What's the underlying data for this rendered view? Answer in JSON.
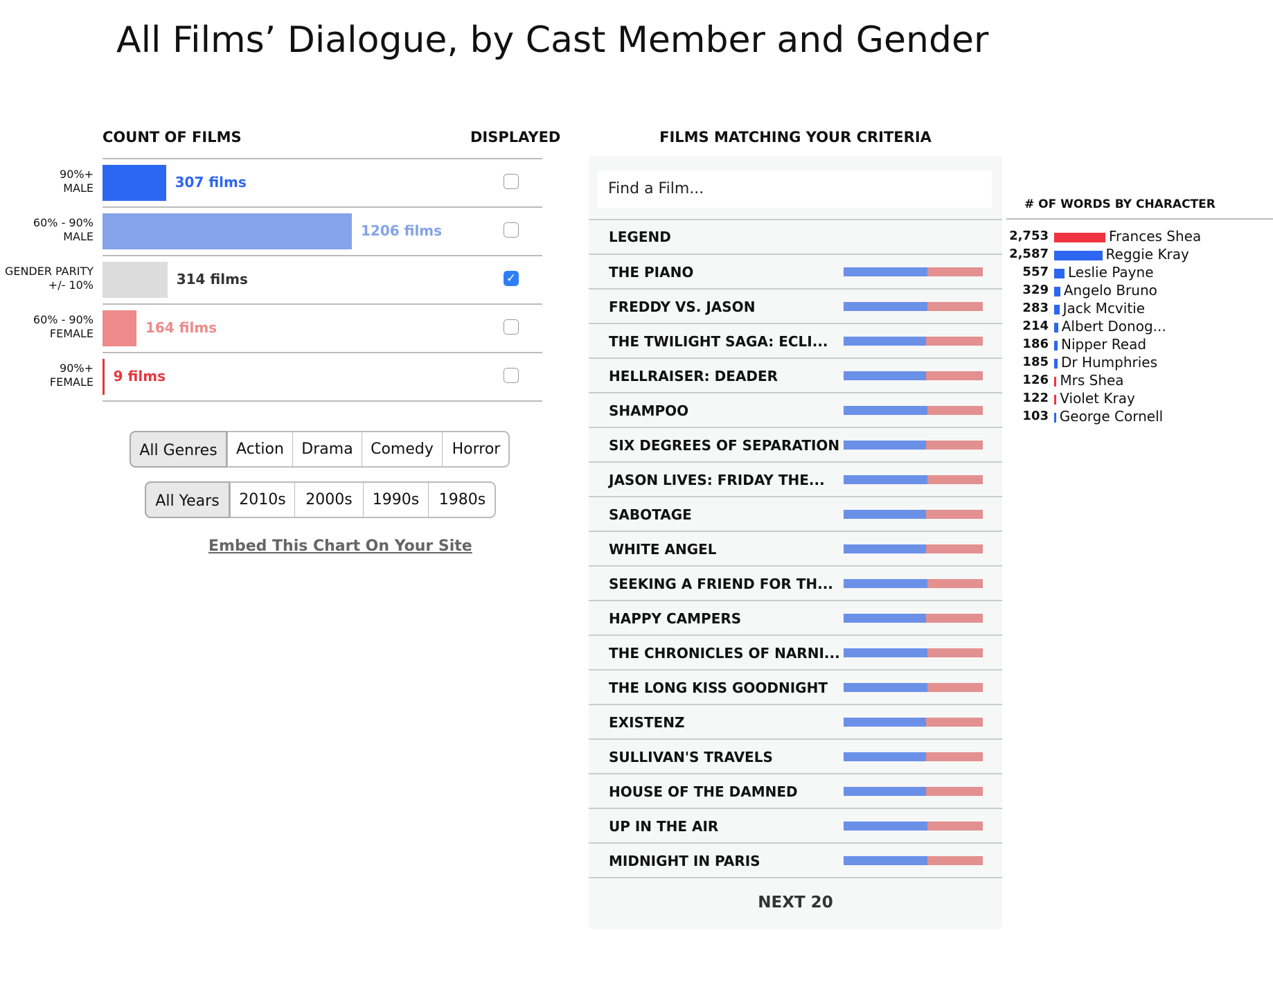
{
  "title": "All Films’ Dialogue, by Cast Member and Gender",
  "count_panel": {
    "header": "COUNT OF FILMS",
    "displayed_header": "DISPLAYED",
    "rows": [
      {
        "label": [
          "90%+",
          "MALE"
        ],
        "count": 307,
        "count_label": "307 films",
        "color": "#2d66f0",
        "text_color": "#2d66f0",
        "checked": false
      },
      {
        "label": [
          "60% - 90%",
          "MALE"
        ],
        "count": 1206,
        "count_label": "1206 films",
        "color": "#84a3e8",
        "text_color": "#84a3e8",
        "checked": false
      },
      {
        "label": [
          "GENDER PARITY",
          "+/- 10%"
        ],
        "count": 314,
        "count_label": "314 films",
        "color": "#dcdcdc",
        "text_color": "#333333",
        "checked": true
      },
      {
        "label": [
          "60% - 90%",
          "FEMALE"
        ],
        "count": 164,
        "count_label": "164 films",
        "color": "#ee8a8a",
        "text_color": "#ee8a8a",
        "checked": false
      },
      {
        "label": [
          "90%+",
          "FEMALE"
        ],
        "count": 9,
        "count_label": "9 films",
        "color": "#e8373f",
        "text_color": "#e8373f",
        "checked": false
      }
    ],
    "genres": {
      "options": [
        "All Genres",
        "Action",
        "Drama",
        "Comedy",
        "Horror"
      ],
      "selected": 0
    },
    "years": {
      "options": [
        "All Years",
        "2010s",
        "2000s",
        "1990s",
        "1980s"
      ],
      "selected": 0
    },
    "embed_link": "Embed This Chart On Your Site"
  },
  "films_panel": {
    "header": "FILMS MATCHING YOUR CRITERIA",
    "search_placeholder": "Find a Film...",
    "legend": "LEGEND",
    "male_color": "#6a90e8",
    "female_color": "#e39090",
    "films": [
      {
        "title": "THE PIANO",
        "male_pct": 60
      },
      {
        "title": "FREDDY VS. JASON",
        "male_pct": 60
      },
      {
        "title": "THE TWILIGHT SAGA: ECLI...",
        "male_pct": 59
      },
      {
        "title": "HELLRAISER: DEADER",
        "male_pct": 59
      },
      {
        "title": "SHAMPOO",
        "male_pct": 60
      },
      {
        "title": "SIX DEGREES OF SEPARATION",
        "male_pct": 59
      },
      {
        "title": "JASON LIVES: FRIDAY THE...",
        "male_pct": 60
      },
      {
        "title": "SABOTAGE",
        "male_pct": 59
      },
      {
        "title": "WHITE ANGEL",
        "male_pct": 59
      },
      {
        "title": "SEEKING A FRIEND FOR TH...",
        "male_pct": 60
      },
      {
        "title": "HAPPY CAMPERS",
        "male_pct": 59
      },
      {
        "title": "THE CHRONICLES OF NARNI...",
        "male_pct": 60
      },
      {
        "title": "THE LONG KISS GOODNIGHT",
        "male_pct": 60
      },
      {
        "title": "EXISTENZ",
        "male_pct": 59
      },
      {
        "title": "SULLIVAN'S TRAVELS",
        "male_pct": 59
      },
      {
        "title": "HOUSE OF THE DAMNED",
        "male_pct": 59
      },
      {
        "title": "UP IN THE AIR",
        "male_pct": 60
      },
      {
        "title": "MIDNIGHT IN PARIS",
        "male_pct": 60
      }
    ],
    "next_button": "NEXT 20"
  },
  "words_panel": {
    "header": "# OF WORDS BY CHARACTER",
    "characters": [
      {
        "name": "Frances Shea",
        "words": {
          "value": 2753,
          "label": "2,753"
        },
        "color": "#ef3340"
      },
      {
        "name": "Reggie Kray",
        "words": {
          "value": 2587,
          "label": "2,587"
        },
        "color": "#2d66f0"
      },
      {
        "name": "Leslie Payne",
        "words": {
          "value": 557,
          "label": "557"
        },
        "color": "#2d66f0"
      },
      {
        "name": "Angelo Bruno",
        "words": {
          "value": 329,
          "label": "329"
        },
        "color": "#2d66f0"
      },
      {
        "name": "Jack Mcvitie",
        "words": {
          "value": 283,
          "label": "283"
        },
        "color": "#2d66f0"
      },
      {
        "name": "Albert Donog...",
        "words": {
          "value": 214,
          "label": "214"
        },
        "color": "#2d66f0"
      },
      {
        "name": "Nipper Read",
        "words": {
          "value": 186,
          "label": "186"
        },
        "color": "#2d66f0"
      },
      {
        "name": "Dr Humphries",
        "words": {
          "value": 185,
          "label": "185"
        },
        "color": "#2d66f0"
      },
      {
        "name": "Mrs Shea",
        "words": {
          "value": 126,
          "label": "126"
        },
        "color": "#ef3340"
      },
      {
        "name": "Violet Kray",
        "words": {
          "value": 122,
          "label": "122"
        },
        "color": "#ef3340"
      },
      {
        "name": "George Cornell",
        "words": {
          "value": 103,
          "label": "103"
        },
        "color": "#2d66f0"
      }
    ]
  }
}
